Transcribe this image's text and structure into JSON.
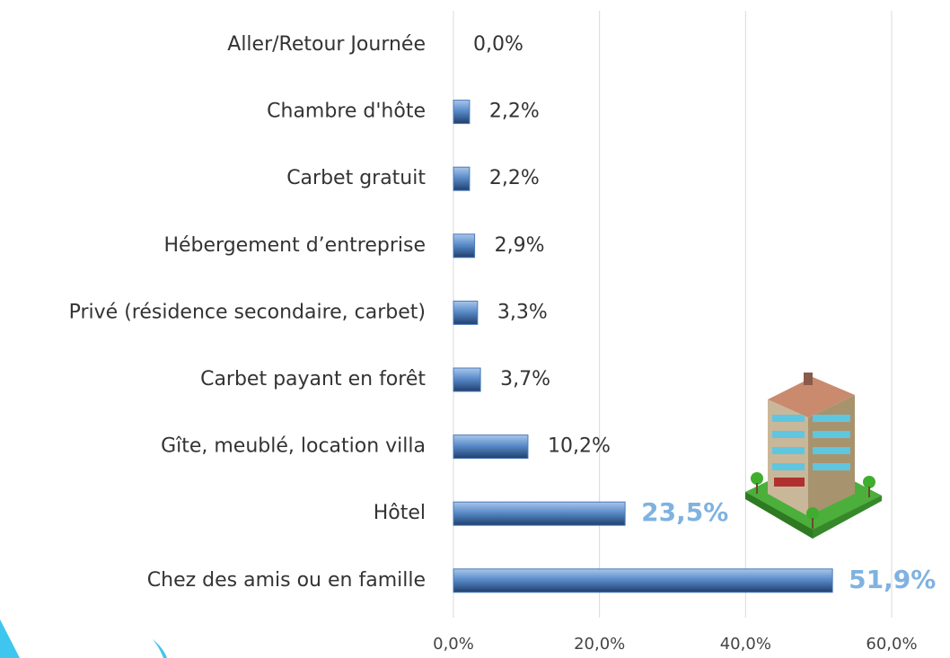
{
  "chart_data": {
    "type": "hbar",
    "categories": [
      "Aller/Retour Journée",
      "Chambre d'hôte",
      "Carbet gratuit",
      "Hébergement d’entreprise",
      "Privé (résidence secondaire, carbet)",
      "Carbet payant en forêt",
      "Gîte, meublé, location villa",
      "Hôtel",
      "Chez des amis ou en famille"
    ],
    "values": [
      0,
      2.2,
      2.2,
      2.9,
      3.3,
      3.7,
      10.2,
      23.5,
      51.9
    ],
    "value_labels": [
      "0,0%",
      "2,2%",
      "2,2%",
      "2,9%",
      "3,3%",
      "3,7%",
      "10,2%",
      "23,5%",
      "51,9%"
    ],
    "color": "#4a7ab8",
    "xlim": [
      0,
      60
    ],
    "xticks": [
      {
        "value": 0,
        "label": "0,0%"
      },
      {
        "value": 20,
        "label": "20,0%"
      },
      {
        "value": 40,
        "label": "40,0%"
      },
      {
        "value": 60,
        "label": "60,0%"
      }
    ],
    "grid": true
  }
}
